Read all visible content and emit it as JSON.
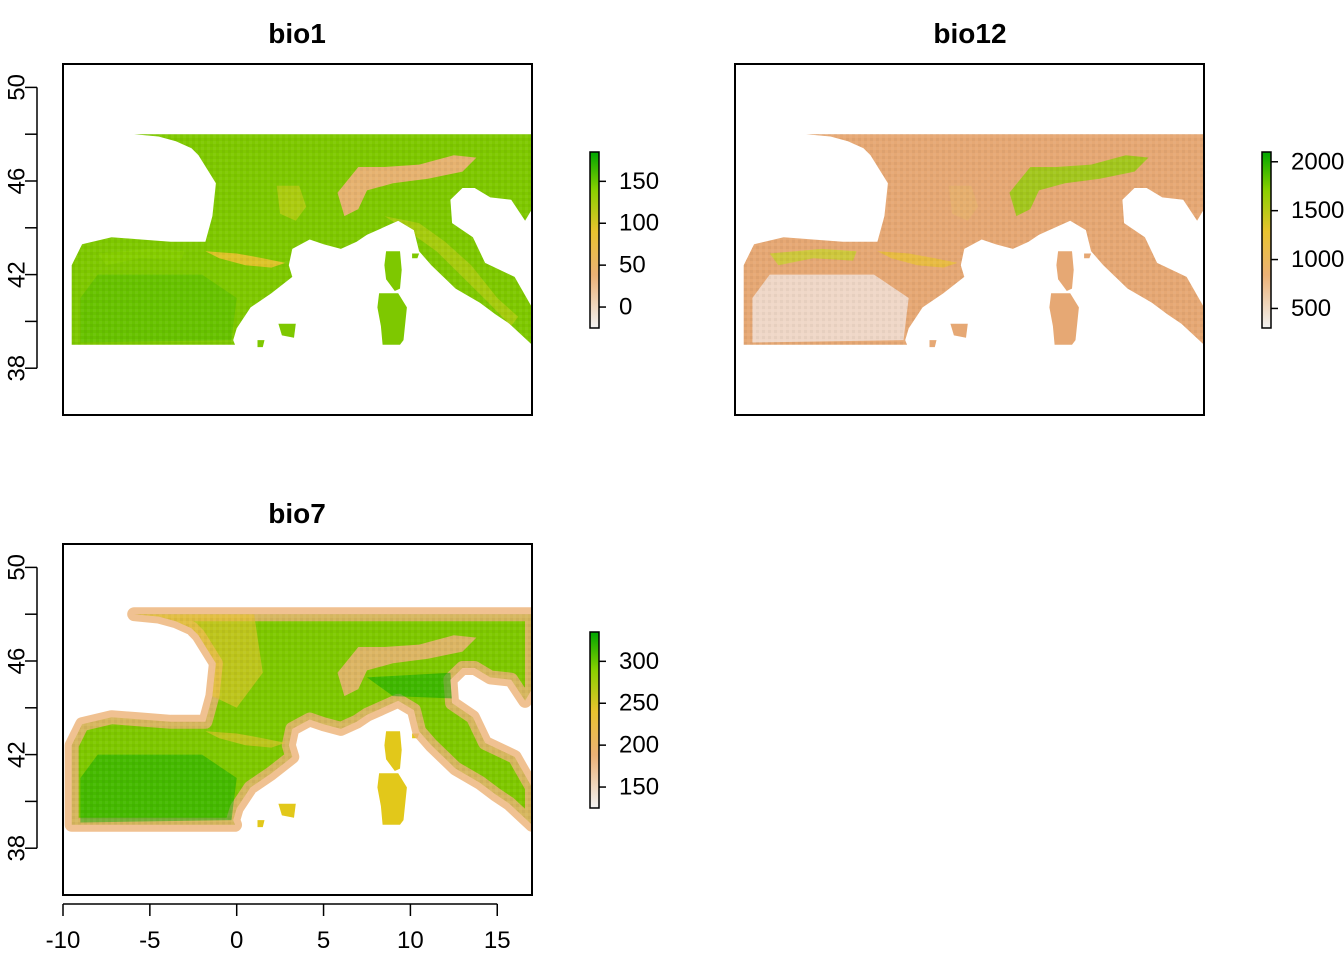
{
  "figure": {
    "panels": [
      {
        "id": "bio1",
        "title": "bio1",
        "x_ticks": [
          "-10",
          "-5",
          "0",
          "5",
          "10",
          "15"
        ],
        "show_x_ticks": false,
        "y_ticks": [
          "38",
          "42",
          "46",
          "50"
        ],
        "show_y_ticks": true,
        "legend": {
          "ticks": [
            "0",
            "50",
            "100",
            "150"
          ],
          "range": [
            -25,
            185
          ]
        }
      },
      {
        "id": "bio12",
        "title": "bio12",
        "x_ticks": [
          "-10",
          "-5",
          "0",
          "5",
          "10",
          "15"
        ],
        "show_x_ticks": false,
        "y_ticks": [
          "38",
          "42",
          "46",
          "50"
        ],
        "show_y_ticks": false,
        "legend": {
          "ticks": [
            "500",
            "1000",
            "1500",
            "2000"
          ],
          "range": [
            300,
            2100
          ]
        }
      },
      {
        "id": "bio7",
        "title": "bio7",
        "x_ticks": [
          "-10",
          "-5",
          "0",
          "5",
          "10",
          "15"
        ],
        "show_x_ticks": true,
        "y_ticks": [
          "38",
          "42",
          "46",
          "50"
        ],
        "show_y_ticks": true,
        "legend": {
          "ticks": [
            "150",
            "200",
            "250",
            "300"
          ],
          "range": [
            125,
            335
          ]
        }
      }
    ]
  },
  "chart_data": {
    "type": "heatmap",
    "extent": {
      "lon": [
        -10,
        17
      ],
      "lat": [
        36,
        51
      ]
    },
    "data_extent": {
      "lon": [
        -9.5,
        17
      ],
      "lat": [
        39,
        48
      ]
    },
    "colors": [
      "#f2f2f2",
      "#ecb176",
      "#e8c32e",
      "#8bd000",
      "#00a600"
    ],
    "layers": [
      {
        "name": "bio1",
        "legend_values": [
          0,
          50,
          100,
          150
        ],
        "range": [
          -25,
          185
        ]
      },
      {
        "name": "bio12",
        "legend_values": [
          500,
          1000,
          1500,
          2000
        ],
        "range": [
          300,
          2100
        ]
      },
      {
        "name": "bio7",
        "legend_values": [
          150,
          200,
          250,
          300
        ],
        "range": [
          125,
          335
        ]
      }
    ]
  }
}
